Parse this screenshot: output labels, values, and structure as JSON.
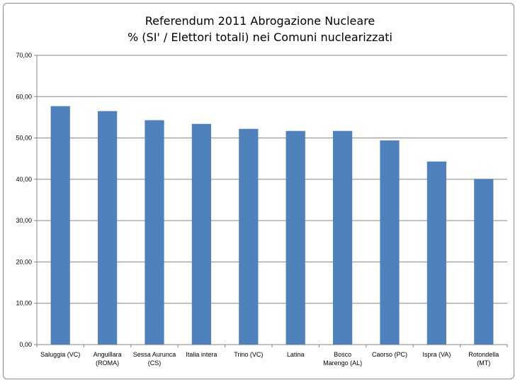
{
  "chart_data": {
    "type": "bar",
    "title_line1": "Referendum 2011 Abrogazione Nucleare",
    "title_line2": "% (SI' / Elettori totali) nei Comuni nuclearizzati",
    "categories": [
      [
        "Saluggia (VC)"
      ],
      [
        "Anguillara",
        "(ROMA)"
      ],
      [
        "Sessa Aurunca",
        "(CS)"
      ],
      [
        "Italia intera"
      ],
      [
        "Trino (VC)"
      ],
      [
        "Latina"
      ],
      [
        "Bosco",
        "Marengo (AL)"
      ],
      [
        "Caorso (PC)"
      ],
      [
        "Ispra (VA)"
      ],
      [
        "Rotondella",
        "(MT)"
      ]
    ],
    "values": [
      57.7,
      56.5,
      54.3,
      53.4,
      52.2,
      51.7,
      51.7,
      49.4,
      44.3,
      40.1
    ],
    "ylim": [
      0,
      70
    ],
    "yticks": [
      "0,00",
      "10,00",
      "20,00",
      "30,00",
      "40,00",
      "50,00",
      "60,00",
      "70,00"
    ],
    "grid": true,
    "bar_color": "#4f81bd",
    "grid_color": "#868686"
  }
}
